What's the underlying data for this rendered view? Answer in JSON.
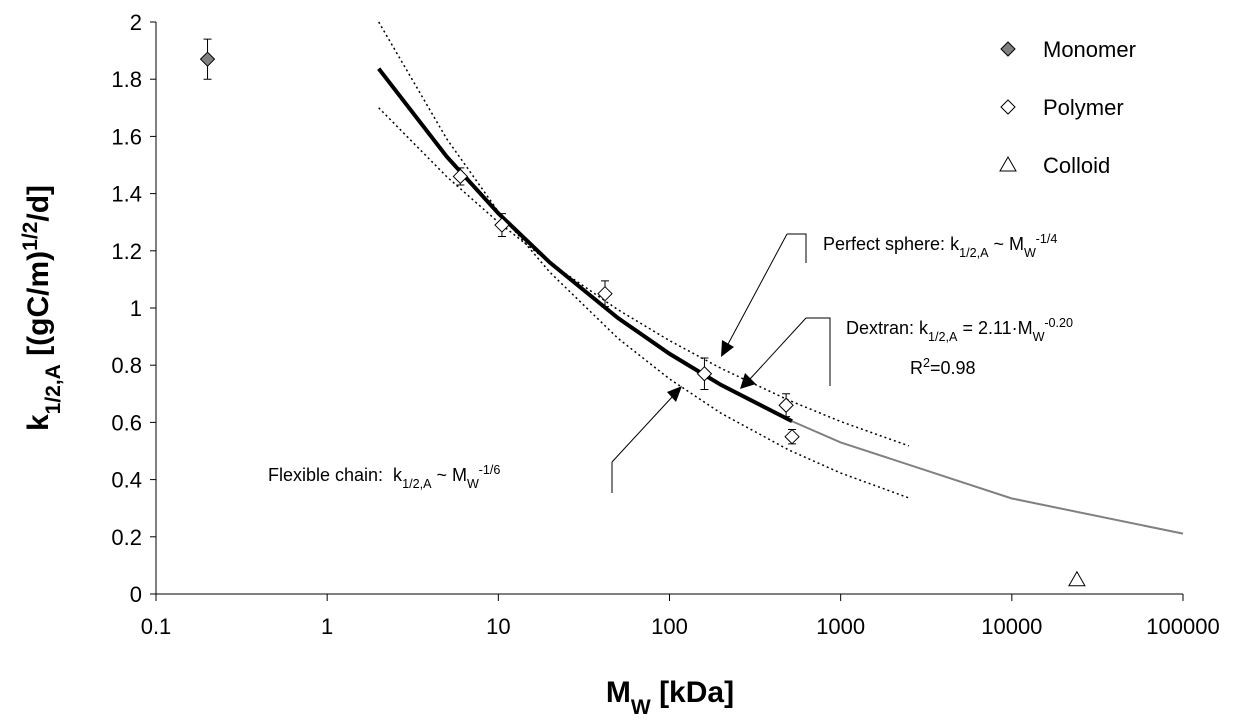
{
  "chart_data": {
    "type": "scatter",
    "x_log": true,
    "xlim": [
      0.1,
      100000
    ],
    "xticks": [
      0.1,
      1,
      10,
      100,
      1000,
      10000,
      100000
    ],
    "ylim": [
      0,
      2
    ],
    "yticks": [
      0,
      0.2,
      0.4,
      0.6,
      0.8,
      1,
      1.2,
      1.4,
      1.6,
      1.8,
      2
    ],
    "x_label": [
      "M",
      "W",
      " [kDa]"
    ],
    "y_label": [
      "k",
      "1/2,A",
      " [(gC/m)",
      "1/2",
      "/d]"
    ],
    "legend": "top-right",
    "series": [
      {
        "name": "Monomer",
        "marker": "diamond",
        "color": "#808080",
        "x": [
          0.2
        ],
        "values": [
          1.87
        ],
        "errors": [
          0.07
        ]
      },
      {
        "name": "Polymer",
        "marker": "diamond",
        "color": "#ffffff",
        "x": [
          6,
          10.5,
          42,
          160,
          480,
          520
        ],
        "values": [
          1.46,
          1.29,
          1.05,
          0.77,
          0.66,
          0.55
        ],
        "errors": [
          0.03,
          0.04,
          0.045,
          0.055,
          0.04,
          0.025
        ]
      },
      {
        "name": "Colloid",
        "marker": "triangle",
        "color": "#ffffff",
        "x": [
          24000
        ],
        "values": [
          0.05
        ]
      }
    ],
    "lines": [
      {
        "color": "#000000",
        "width": 1.5,
        "dash": "2 3",
        "x": [
          2,
          5,
          10,
          20,
          50,
          100,
          200,
          500,
          1000,
          2500
        ],
        "values": [
          2.0,
          1.591,
          1.337,
          1.125,
          0.894,
          0.752,
          0.632,
          0.503,
          0.423,
          0.336
        ]
      },
      {
        "color": "#000000",
        "width": 1.5,
        "dash": "2 3",
        "x": [
          2,
          5,
          10,
          20,
          50,
          100,
          200,
          500,
          1000,
          2500
        ],
        "values": [
          1.7,
          1.459,
          1.3,
          1.158,
          0.994,
          0.886,
          0.789,
          0.677,
          0.603,
          0.518
        ]
      },
      {
        "color": "#000000",
        "width": 4,
        "dash": "none",
        "x": [
          2,
          5,
          10,
          20,
          50,
          100,
          200,
          520
        ],
        "values": [
          1.837,
          1.529,
          1.331,
          1.159,
          0.965,
          0.84,
          0.731,
          0.604
        ]
      },
      {
        "color": "#808080",
        "width": 2,
        "dash": "none",
        "x": [
          520,
          1000,
          10000,
          100000
        ],
        "values": [
          0.604,
          0.53,
          0.334,
          0.211
        ]
      }
    ],
    "annotations": [
      [
        "Perfect sphere: k",
        "1/2,A",
        " ~ M",
        "W",
        "-1/4"
      ],
      [
        "Dextran: k",
        "1/2,A",
        " = 2.11·M",
        "W",
        "-0.20"
      ],
      [
        "R",
        "2",
        "=0.98"
      ],
      [
        "Flexible chain:  k",
        "1/2,A",
        " ~ M",
        "W",
        "-1/6"
      ]
    ]
  }
}
